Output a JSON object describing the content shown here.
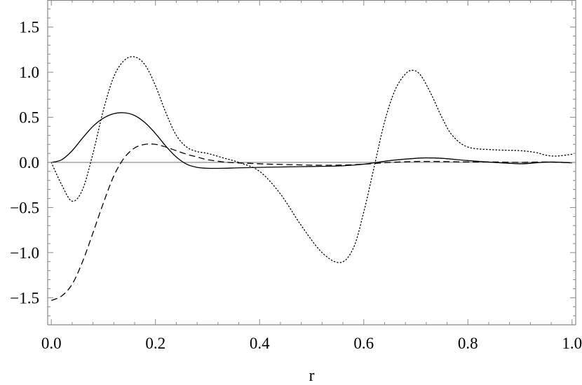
{
  "chart_data": {
    "type": "line",
    "title": "",
    "xlabel": "r",
    "ylabel": "",
    "xlim": [
      -0.007,
      1.007
    ],
    "ylim": [
      -1.8,
      1.8
    ],
    "grid": false,
    "zero_line": true,
    "x_ticks": [
      0.0,
      0.2,
      0.4,
      0.6,
      0.8,
      1.0
    ],
    "x_tick_labels": [
      "0.0",
      "0.2",
      "0.4",
      "0.6",
      "0.8",
      "1.0"
    ],
    "y_ticks": [
      -1.5,
      -1.0,
      -0.5,
      0.0,
      0.5,
      1.0,
      1.5
    ],
    "y_tick_labels": [
      "−1.5",
      "−1.0",
      "−0.5",
      "0.0",
      "0.5",
      "1.0",
      "1.5"
    ],
    "series": [
      {
        "style": "solid",
        "color": "#000000",
        "x": [
          0.0,
          0.02,
          0.04,
          0.06,
          0.08,
          0.1,
          0.12,
          0.14,
          0.16,
          0.18,
          0.2,
          0.22,
          0.24,
          0.26,
          0.28,
          0.3,
          0.33,
          0.36,
          0.4,
          0.45,
          0.5,
          0.55,
          0.6,
          0.65,
          0.7,
          0.72,
          0.75,
          0.8,
          0.85,
          0.9,
          0.93,
          0.96,
          1.0
        ],
        "y": [
          0.0,
          0.03,
          0.13,
          0.27,
          0.4,
          0.49,
          0.54,
          0.55,
          0.52,
          0.44,
          0.32,
          0.18,
          0.06,
          -0.02,
          -0.055,
          -0.065,
          -0.065,
          -0.06,
          -0.055,
          -0.05,
          -0.045,
          -0.04,
          -0.02,
          0.02,
          0.045,
          0.05,
          0.045,
          0.02,
          0.0,
          -0.015,
          -0.005,
          0.005,
          -0.005
        ]
      },
      {
        "style": "dashed",
        "color": "#000000",
        "x": [
          0.0,
          0.02,
          0.04,
          0.06,
          0.08,
          0.1,
          0.12,
          0.14,
          0.16,
          0.18,
          0.2,
          0.22,
          0.24,
          0.26,
          0.28,
          0.3,
          0.34,
          0.38,
          0.42,
          0.46,
          0.5,
          0.55,
          0.6,
          0.65,
          0.7,
          0.75,
          0.8,
          0.85,
          0.9,
          0.95,
          1.0
        ],
        "y": [
          -1.53,
          -1.48,
          -1.35,
          -1.1,
          -0.78,
          -0.45,
          -0.15,
          0.05,
          0.16,
          0.2,
          0.2,
          0.17,
          0.13,
          0.09,
          0.06,
          0.03,
          0.0,
          -0.01,
          -0.02,
          -0.025,
          -0.03,
          -0.03,
          -0.02,
          0.0,
          0.01,
          0.01,
          0.005,
          0.005,
          0.0,
          0.005,
          -0.005
        ]
      },
      {
        "style": "dotted",
        "color": "#000000",
        "x": [
          0.0,
          0.02,
          0.04,
          0.06,
          0.08,
          0.1,
          0.12,
          0.14,
          0.16,
          0.18,
          0.2,
          0.22,
          0.24,
          0.26,
          0.28,
          0.3,
          0.33,
          0.36,
          0.4,
          0.44,
          0.48,
          0.52,
          0.555,
          0.58,
          0.6,
          0.62,
          0.64,
          0.66,
          0.68,
          0.695,
          0.71,
          0.73,
          0.75,
          0.77,
          0.8,
          0.85,
          0.9,
          0.93,
          0.95,
          0.97,
          1.0
        ],
        "y": [
          0.0,
          -0.25,
          -0.43,
          -0.3,
          0.1,
          0.58,
          0.95,
          1.13,
          1.17,
          1.08,
          0.85,
          0.55,
          0.3,
          0.17,
          0.12,
          0.1,
          0.05,
          0.0,
          -0.1,
          -0.35,
          -0.7,
          -1.0,
          -1.11,
          -0.95,
          -0.55,
          -0.05,
          0.45,
          0.8,
          0.98,
          1.02,
          0.96,
          0.75,
          0.5,
          0.3,
          0.17,
          0.14,
          0.13,
          0.11,
          0.08,
          0.07,
          0.09
        ]
      }
    ]
  }
}
